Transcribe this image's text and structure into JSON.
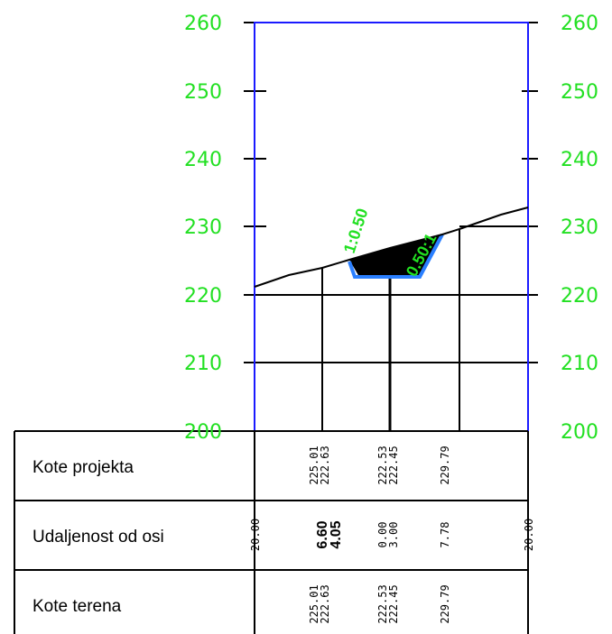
{
  "axis": {
    "left_ticks": [
      "260",
      "250",
      "240",
      "230",
      "220",
      "210",
      "200"
    ],
    "right_ticks": [
      "260",
      "250",
      "240",
      "230",
      "220",
      "210",
      "200"
    ]
  },
  "slopes": [
    "1:0.50",
    "0.50:1"
  ],
  "table": {
    "rows": [
      {
        "label": "Kote projekta",
        "values": [
          "225.01",
          "222.63",
          "222.53",
          "222.45",
          "229.79"
        ]
      },
      {
        "label": "Udaljenost od osi",
        "values": [
          "20.00",
          "6.60",
          "4.05",
          "0.00",
          "3.00",
          "7.78",
          "20.00"
        ]
      },
      {
        "label": "Kote terena",
        "values": [
          "225.01",
          "222.63",
          "222.53",
          "222.45",
          "229.79"
        ]
      }
    ]
  }
}
